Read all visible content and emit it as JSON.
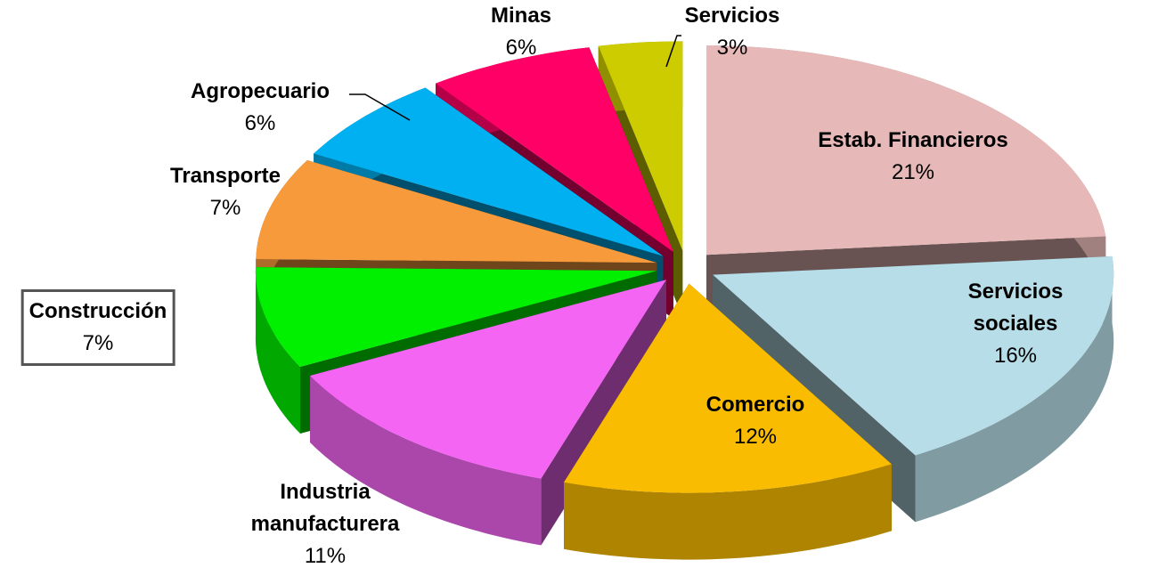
{
  "chart_data": {
    "type": "pie",
    "categories": [
      "Estab. Financieros",
      "Servicios sociales",
      "Comercio",
      "Industria manufacturera",
      "Construcción",
      "Transporte",
      "Agropecuario",
      "Minas",
      "Servicios"
    ],
    "values": [
      21,
      16,
      12,
      11,
      7,
      7,
      6,
      6,
      3
    ],
    "value_labels": [
      "21%",
      "16%",
      "12%",
      "11%",
      "7%",
      "7%",
      "6%",
      "6%",
      "3%"
    ],
    "colors": [
      "#e6b8b7",
      "#b7dde8",
      "#f9bc00",
      "#f465f4",
      "#00f000",
      "#f79a3c",
      "#00b0f0",
      "#ff0066",
      "#cccc00"
    ]
  }
}
